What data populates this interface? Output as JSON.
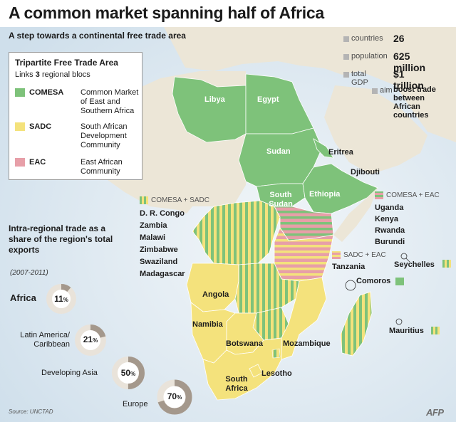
{
  "title": "A common market spanning half of Africa",
  "subtitle": "A step towards a continental free trade area",
  "legend": {
    "title": "Tripartite Free Trade Area",
    "subtitle_prefix": "Links",
    "subtitle_number": "3",
    "subtitle_suffix": "regional blocs",
    "blocs": [
      {
        "code": "COMESA",
        "desc": "Common Market of East and Southern Africa",
        "color": "#7ec27a"
      },
      {
        "code": "SADC",
        "desc": "South African Development Community",
        "color": "#f4e27c"
      },
      {
        "code": "EAC",
        "desc": "East African Community",
        "color": "#e79fa8"
      }
    ]
  },
  "stats": [
    {
      "label": "countries",
      "value": "26"
    },
    {
      "label": "population",
      "value": "625 million"
    },
    {
      "label": "total GDP",
      "value": "$1 trillion"
    },
    {
      "label": "aim",
      "value": "boost trade between African countries"
    }
  ],
  "countries": {
    "libya": "Libya",
    "egypt": "Egypt",
    "sudan": "Sudan",
    "south_sudan": "South Sudan",
    "ethiopia": "Ethiopia",
    "eritrea": "Eritrea",
    "djibouti": "Djibouti",
    "angola": "Angola",
    "namibia": "Namibia",
    "botswana": "Botswana",
    "mozambique": "Mozambique",
    "lesotho": "Lesotho",
    "south_africa": "South Africa",
    "tanzania": "Tanzania",
    "seychelles": "Seychelles",
    "comoros": "Comoros",
    "mauritius": "Mauritius"
  },
  "groups": {
    "comesa_sadc": {
      "label": "COMESA + SADC",
      "members": [
        "D. R. Congo",
        "Zambia",
        "Malawi",
        "Zimbabwe",
        "Swaziland",
        "Madagascar"
      ]
    },
    "comesa_eac": {
      "label": "COMESA + EAC",
      "members": [
        "Uganda",
        "Kenya",
        "Rwanda",
        "Burundi"
      ]
    },
    "sadc_eac": {
      "label": "SADC + EAC"
    }
  },
  "trade": {
    "title": "Intra-regional trade as a share of the region's total exports",
    "period": "(2007-2011)",
    "items": [
      {
        "region": "Africa",
        "value": 11
      },
      {
        "region": "Latin America/ Caribbean",
        "value": 21
      },
      {
        "region": "Developing Asia",
        "value": 50
      },
      {
        "region": "Europe",
        "value": 70
      }
    ]
  },
  "source": "Source: UNCTAD",
  "credit": "AFP",
  "colors": {
    "comesa": "#7ec27a",
    "sadc": "#f4e27c",
    "eac": "#e79fa8",
    "sea": "#dde9f1",
    "land": "#ede7d8",
    "donut_track": "#e9e3da",
    "donut_fill": "#a4988c"
  }
}
